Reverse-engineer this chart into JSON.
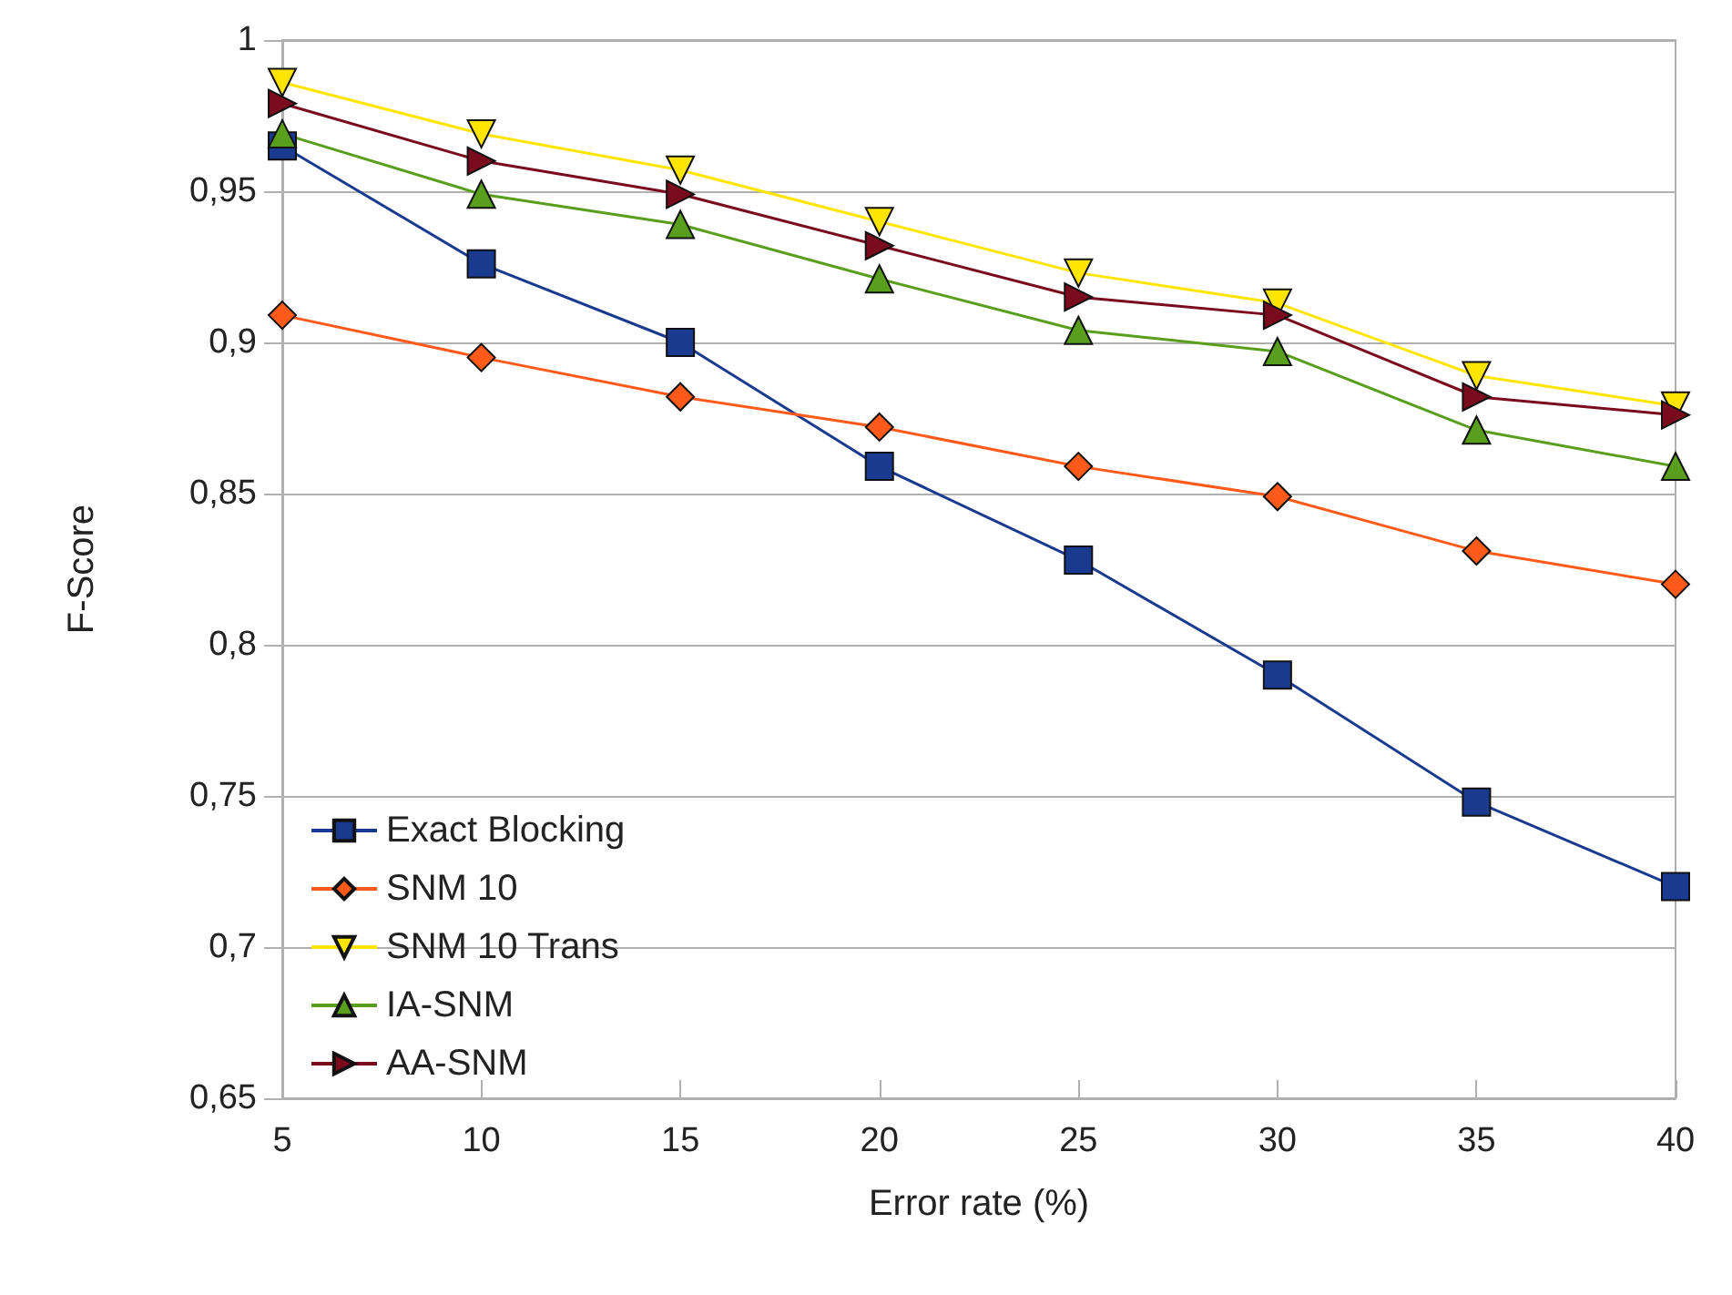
{
  "chart_data": {
    "type": "line",
    "xlabel": "Error rate (%)",
    "ylabel": "F-Score",
    "x": [
      5,
      10,
      15,
      20,
      25,
      30,
      35,
      40
    ],
    "xlim": [
      5,
      40
    ],
    "xticks": [
      5,
      10,
      15,
      20,
      25,
      30,
      35,
      40
    ],
    "ylim": [
      0.65,
      1
    ],
    "yticks": [
      {
        "value": 0.65,
        "label": "0,65"
      },
      {
        "value": 0.7,
        "label": "0,7"
      },
      {
        "value": 0.75,
        "label": "0,75"
      },
      {
        "value": 0.8,
        "label": "0,8"
      },
      {
        "value": 0.85,
        "label": "0,85"
      },
      {
        "value": 0.9,
        "label": "0,9"
      },
      {
        "value": 0.95,
        "label": "0,95"
      },
      {
        "value": 1,
        "label": "1"
      }
    ],
    "grid": "y",
    "legend": "bottom left",
    "series": [
      {
        "name": "Exact Blocking",
        "color": "#1a3a8f",
        "marker": "square",
        "values": [
          0.965,
          0.926,
          0.9,
          0.859,
          0.828,
          0.79,
          0.748,
          0.72
        ]
      },
      {
        "name": "SNM 10",
        "color": "#ff5a1a",
        "marker": "diamond",
        "values": [
          0.909,
          0.895,
          0.882,
          0.872,
          0.859,
          0.849,
          0.831,
          0.82
        ]
      },
      {
        "name": "SNM 10 Trans",
        "color": "#ffe500",
        "marker": "triangle-down",
        "values": [
          0.986,
          0.969,
          0.957,
          0.94,
          0.923,
          0.913,
          0.889,
          0.879
        ]
      },
      {
        "name": "IA-SNM",
        "color": "#5a9e1e",
        "marker": "triangle",
        "values": [
          0.969,
          0.949,
          0.939,
          0.921,
          0.904,
          0.897,
          0.871,
          0.859
        ]
      },
      {
        "name": "AA-SNM",
        "color": "#7a0a1e",
        "marker": "triangle-right",
        "values": [
          0.979,
          0.96,
          0.949,
          0.932,
          0.915,
          0.909,
          0.882,
          0.876
        ]
      }
    ]
  }
}
